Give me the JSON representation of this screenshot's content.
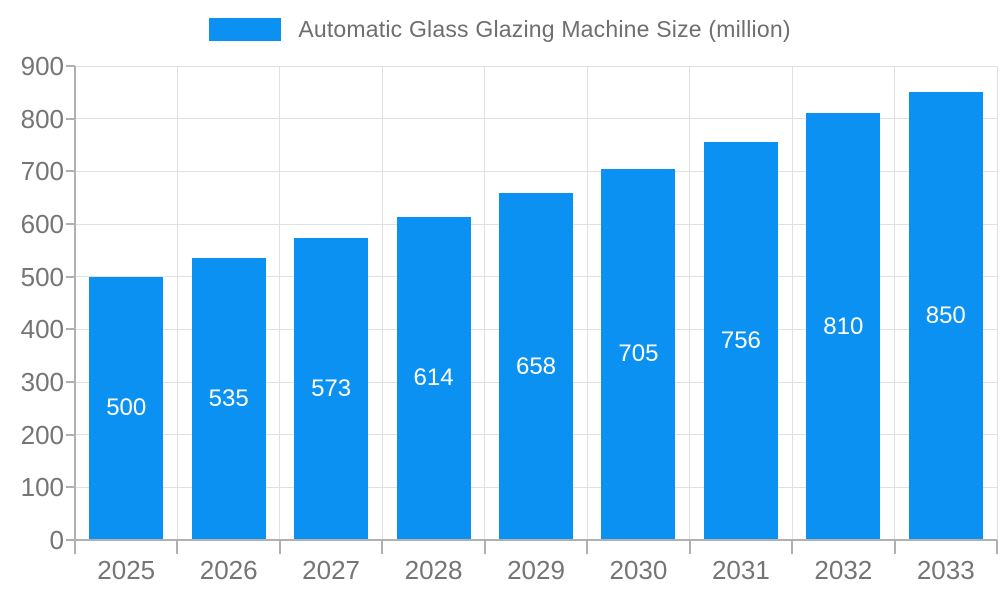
{
  "chart_data": {
    "type": "bar",
    "title": "Automatic Glass Glazing Machine Size (million)",
    "categories": [
      "2025",
      "2026",
      "2027",
      "2028",
      "2029",
      "2030",
      "2031",
      "2032",
      "2033"
    ],
    "values": [
      500,
      535,
      573,
      614,
      658,
      705,
      756,
      810,
      850
    ],
    "xlabel": "",
    "ylabel": "",
    "ylim": [
      0,
      900
    ],
    "ytick_step": 100,
    "grid": "on",
    "legend_position": "top-center",
    "colors": {
      "bar": "#0a91f2",
      "bar_value_text": "#ffffff",
      "axis_label": "#757575",
      "legend_text": "#6e6e6e",
      "gridline": "#e0e0e0",
      "axis_line": "#b0b0b0",
      "background": "#ffffff"
    }
  }
}
